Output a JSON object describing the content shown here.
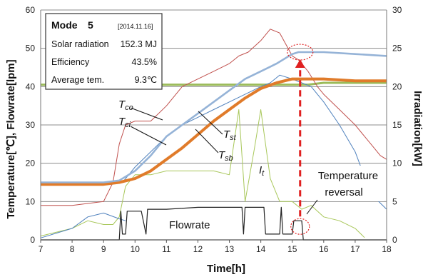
{
  "chart_data": {
    "type": "line",
    "xlabel": "Time[h]",
    "ylabel_left": "Temperature[℃], Flowrate[lpm]",
    "ylabel_right": "Irradiation[kW]",
    "xlim": [
      7,
      18
    ],
    "ylim_left": [
      0,
      60
    ],
    "ylim_right": [
      0,
      30
    ],
    "x_ticks": [
      7,
      8,
      9,
      10,
      11,
      12,
      13,
      14,
      15,
      16,
      17,
      18
    ],
    "y_left_ticks": [
      0,
      10,
      20,
      30,
      40,
      50,
      60
    ],
    "y_right_ticks": [
      0,
      5,
      10,
      15,
      20,
      25,
      30
    ],
    "grid": "horizontal",
    "info_box": {
      "mode_label": "Mode",
      "mode_value": "5",
      "date": "[2014.11.16]",
      "rows": [
        {
          "label": "Solar radiation",
          "value": "152.3 MJ"
        },
        {
          "label": "Efficiency",
          "value": "43.5%"
        },
        {
          "label": "Average tem.",
          "value": "9.3℃"
        }
      ]
    },
    "annotations": {
      "tco": {
        "base": "T",
        "sub": "co"
      },
      "tci": {
        "base": "T",
        "sub": "ci"
      },
      "tst": {
        "base": "T",
        "sub": "st"
      },
      "tsb": {
        "base": "T",
        "sub": "sb"
      },
      "it": {
        "base": "I",
        "sub": "t"
      },
      "flowrate": "Flowrate",
      "reversal_line1": "Temperature",
      "reversal_line2": "reversal"
    },
    "series": [
      {
        "key": "tco",
        "color": "#c0504d",
        "axis": "left",
        "x": [
          7.0,
          8.0,
          9.0,
          9.3,
          9.5,
          9.7,
          10.0,
          10.5,
          11.0,
          11.5,
          12.0,
          12.5,
          13.0,
          13.3,
          13.6,
          14.0,
          14.3,
          14.6,
          15.0,
          15.2,
          15.5,
          15.8,
          16.0,
          16.5,
          17.0,
          17.3,
          17.6,
          17.8,
          18.0
        ],
        "y": [
          9,
          9,
          10,
          15,
          25,
          30,
          31,
          31,
          35,
          40,
          42,
          44,
          46,
          48,
          49,
          52,
          55,
          54,
          48,
          47,
          44,
          40,
          38,
          34,
          30,
          27,
          24,
          22,
          21
        ]
      },
      {
        "key": "tci",
        "color": "#4f81bd",
        "axis": "left",
        "x": [
          7.0,
          8.0,
          9.0,
          9.6,
          9.8,
          10.0,
          10.5,
          11.0,
          11.5,
          12.0,
          12.5,
          13.0,
          13.5,
          14.0,
          14.3,
          14.6,
          15.0,
          15.3,
          15.6,
          16.0,
          16.5,
          17.0,
          17.5,
          18.0
        ],
        "y": [
          15,
          15,
          15,
          15,
          17,
          19,
          23,
          27,
          30,
          32,
          34,
          36,
          38,
          40,
          41,
          43,
          42,
          41,
          40,
          36,
          30,
          23,
          12,
          8
        ]
      },
      {
        "key": "tst",
        "color": "#95b3d7",
        "axis": "left",
        "x": [
          7.0,
          8.0,
          9.0,
          9.5,
          10.0,
          10.5,
          11.0,
          11.5,
          12.0,
          12.5,
          13.0,
          13.5,
          14.0,
          14.5,
          15.0,
          15.2,
          15.5,
          16.0,
          17.0,
          18.0
        ],
        "y": [
          15,
          15,
          15,
          15.5,
          18,
          22,
          27,
          30,
          33,
          36,
          39,
          42,
          44,
          46,
          48.5,
          49,
          49,
          49,
          48.5,
          48
        ]
      },
      {
        "key": "tsb",
        "color": "#e07b2a",
        "axis": "left",
        "x": [
          7.0,
          8.0,
          9.0,
          9.5,
          10.0,
          10.5,
          11.0,
          11.5,
          12.0,
          12.5,
          13.0,
          13.5,
          14.0,
          14.5,
          15.0,
          15.5,
          16.0,
          17.0,
          18.0
        ],
        "y": [
          14.5,
          14.5,
          14.5,
          15,
          16,
          18,
          21,
          24,
          27.5,
          31,
          34,
          37,
          39.5,
          41,
          42,
          42,
          42,
          41.5,
          41.5
        ]
      },
      {
        "key": "ambient",
        "color": "#9bbb59",
        "axis": "left",
        "x": [
          7.0,
          15.5,
          16.0,
          17.0,
          18.0
        ],
        "y": [
          40.5,
          40.5,
          41,
          41,
          41
        ]
      },
      {
        "key": "it",
        "color": "#a8c75a",
        "axis": "right",
        "x": [
          7.0,
          8.0,
          8.5,
          9.0,
          9.3,
          9.5,
          9.7,
          10.0,
          10.5,
          11.0,
          11.5,
          12.0,
          12.5,
          13.0,
          13.3,
          13.5,
          13.8,
          14.0,
          14.3,
          14.6,
          15.0,
          15.3,
          15.6,
          16.0,
          16.5,
          17.0,
          17.3
        ],
        "y": [
          0.5,
          1.5,
          2.5,
          2.0,
          2.0,
          3.0,
          7.0,
          8.5,
          8.5,
          9.0,
          9.0,
          9.0,
          9.0,
          8.5,
          17.0,
          5.0,
          12.0,
          17.0,
          8.0,
          5.0,
          5.0,
          4.0,
          4.5,
          3.0,
          2.5,
          1.5,
          0.3
        ]
      },
      {
        "key": "flowrate",
        "color": "#222222",
        "axis": "left",
        "x": [
          7.0,
          9.5,
          9.55,
          9.6,
          9.7,
          9.75,
          10.0,
          10.2,
          10.35,
          10.4,
          11.0,
          12.0,
          13.0,
          13.4,
          13.45,
          13.5,
          14.0,
          14.1,
          14.15,
          14.6,
          14.65,
          14.7,
          15.0,
          15.05,
          15.2,
          15.3,
          15.35,
          18.0
        ],
        "y": [
          0,
          0,
          7.5,
          1.5,
          1.5,
          7.5,
          7.5,
          7.5,
          1.5,
          8.0,
          8.0,
          8.5,
          8.5,
          8.5,
          1.5,
          8.5,
          8.5,
          8.5,
          1.5,
          1.5,
          8.5,
          1.5,
          1.5,
          5.0,
          5.0,
          5.0,
          0,
          0
        ]
      },
      {
        "key": "bottom",
        "color": "#4f81bd",
        "axis": "left",
        "x": [
          7.0,
          8.0,
          8.5,
          9.0,
          9.5,
          9.7
        ],
        "y": [
          0.5,
          3.0,
          6.0,
          7.0,
          5.5,
          5.0
        ]
      }
    ],
    "highlight": {
      "x": 15.25,
      "y_top": 49,
      "y_bottom": 3.5,
      "color": "#e02020"
    }
  }
}
